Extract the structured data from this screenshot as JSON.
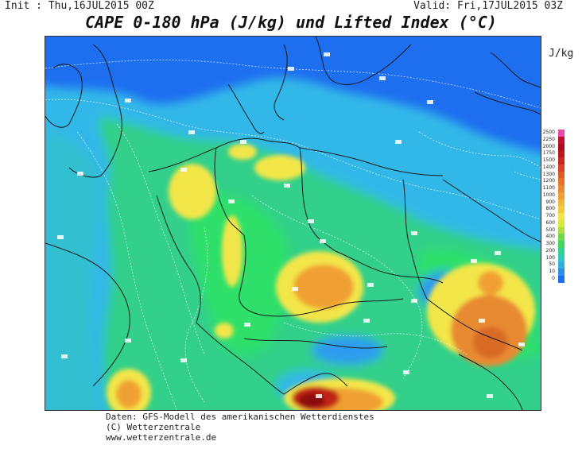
{
  "header": {
    "init": "Init : Thu,16JUL2015 00Z",
    "valid": "Valid: Fri,17JUL2015 03Z",
    "title": "CAPE 0-180 hPa (J/kg) und Lifted Index (°C)"
  },
  "map": {
    "unit": "J/kg",
    "colors": {
      "ocean_deep": "#1e6ef0",
      "ocean": "#2f9bf0",
      "low": "#33c8d8",
      "green": "#33d08a",
      "green_bright": "#2fe06a",
      "yellow": "#f3e64a",
      "orange": "#f0a030",
      "dark_orange": "#e07020",
      "red": "#c02018",
      "dark_red": "#8a0c10",
      "border": "#1a1a1a",
      "contour": "#d8e8f8"
    }
  },
  "legend": {
    "levels": [
      {
        "label": "2500",
        "color": "#e84aa8"
      },
      {
        "label": "2250",
        "color": "#c01030"
      },
      {
        "label": "2000",
        "color": "#a80c18"
      },
      {
        "label": "1750",
        "color": "#b81818"
      },
      {
        "label": "1500",
        "color": "#c82820"
      },
      {
        "label": "1400",
        "color": "#d84028"
      },
      {
        "label": "1300",
        "color": "#e05a28"
      },
      {
        "label": "1200",
        "color": "#e87028"
      },
      {
        "label": "1100",
        "color": "#ec8830"
      },
      {
        "label": "1000",
        "color": "#f0a030"
      },
      {
        "label": "900",
        "color": "#f0b838"
      },
      {
        "label": "800",
        "color": "#f2cc3e"
      },
      {
        "label": "700",
        "color": "#f3e24a"
      },
      {
        "label": "600",
        "color": "#d8e840"
      },
      {
        "label": "500",
        "color": "#a8e040"
      },
      {
        "label": "400",
        "color": "#6ed848"
      },
      {
        "label": "300",
        "color": "#3cd860"
      },
      {
        "label": "200",
        "color": "#30d490"
      },
      {
        "label": "100",
        "color": "#30c8c0"
      },
      {
        "label": "50",
        "color": "#30b0e0"
      },
      {
        "label": "10",
        "color": "#2a90ec"
      },
      {
        "label": "0",
        "color": "#1e6ef0"
      }
    ]
  },
  "footer": {
    "line1": "Daten: GFS-Modell des amerikanischen Wetterdienstes",
    "line2": "(C) Wetterzentrale",
    "line3": "www.wetterzentrale.de"
  }
}
